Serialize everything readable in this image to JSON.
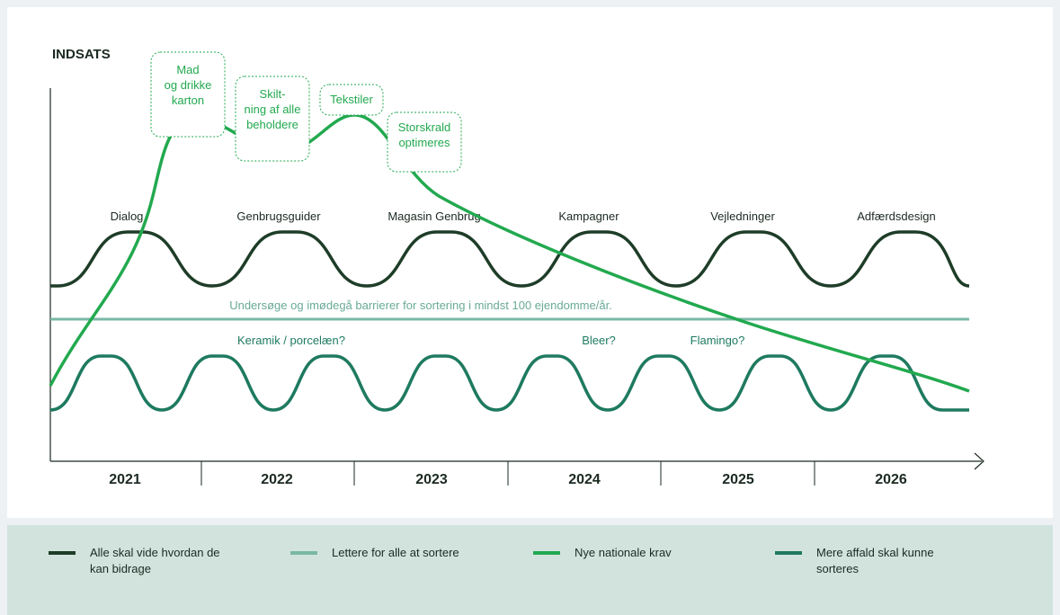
{
  "diagram": {
    "y_axis_label": "INDSATS",
    "colors": {
      "dark": "#1e3d28",
      "light_teal": "#7ab8a6",
      "bright_green": "#22a94f",
      "teal": "#1e7a60",
      "axis": "#1b2a21"
    },
    "years": [
      "2021",
      "2022",
      "2023",
      "2024",
      "2025",
      "2026"
    ],
    "callouts": [
      {
        "lines": [
          "Mad",
          "og drikke",
          "karton"
        ]
      },
      {
        "lines": [
          "Skilt-",
          "ning af alle",
          "beholdere"
        ]
      },
      {
        "lines": [
          "Tekstiler"
        ]
      },
      {
        "lines": [
          "Storskrald",
          "optimeres"
        ]
      }
    ],
    "top_wave_labels": [
      "Dialog",
      "Genbrugsguider",
      "Magasin Genbrug",
      "Kampagner",
      "Vejledninger",
      "Adfærdsdesign"
    ],
    "middle_line_label": "Undersøge og imødegå barrierer for sortering i mindst 100 ejendomme/år.",
    "bottom_wave_labels": [
      "Keramik / porcelæn?",
      "Bleer?",
      "Flamingo?"
    ]
  },
  "legend": [
    {
      "color": "#1e3d28",
      "label_lines": [
        "Alle skal vide hvordan de",
        "kan bidrage"
      ]
    },
    {
      "color": "#7ab8a6",
      "label_lines": [
        "Lettere for alle at sortere"
      ]
    },
    {
      "color": "#22a94f",
      "label_lines": [
        "Nye nationale krav"
      ]
    },
    {
      "color": "#1e7a60",
      "label_lines": [
        "Mere affald skal kunne",
        "sorteres"
      ]
    }
  ]
}
